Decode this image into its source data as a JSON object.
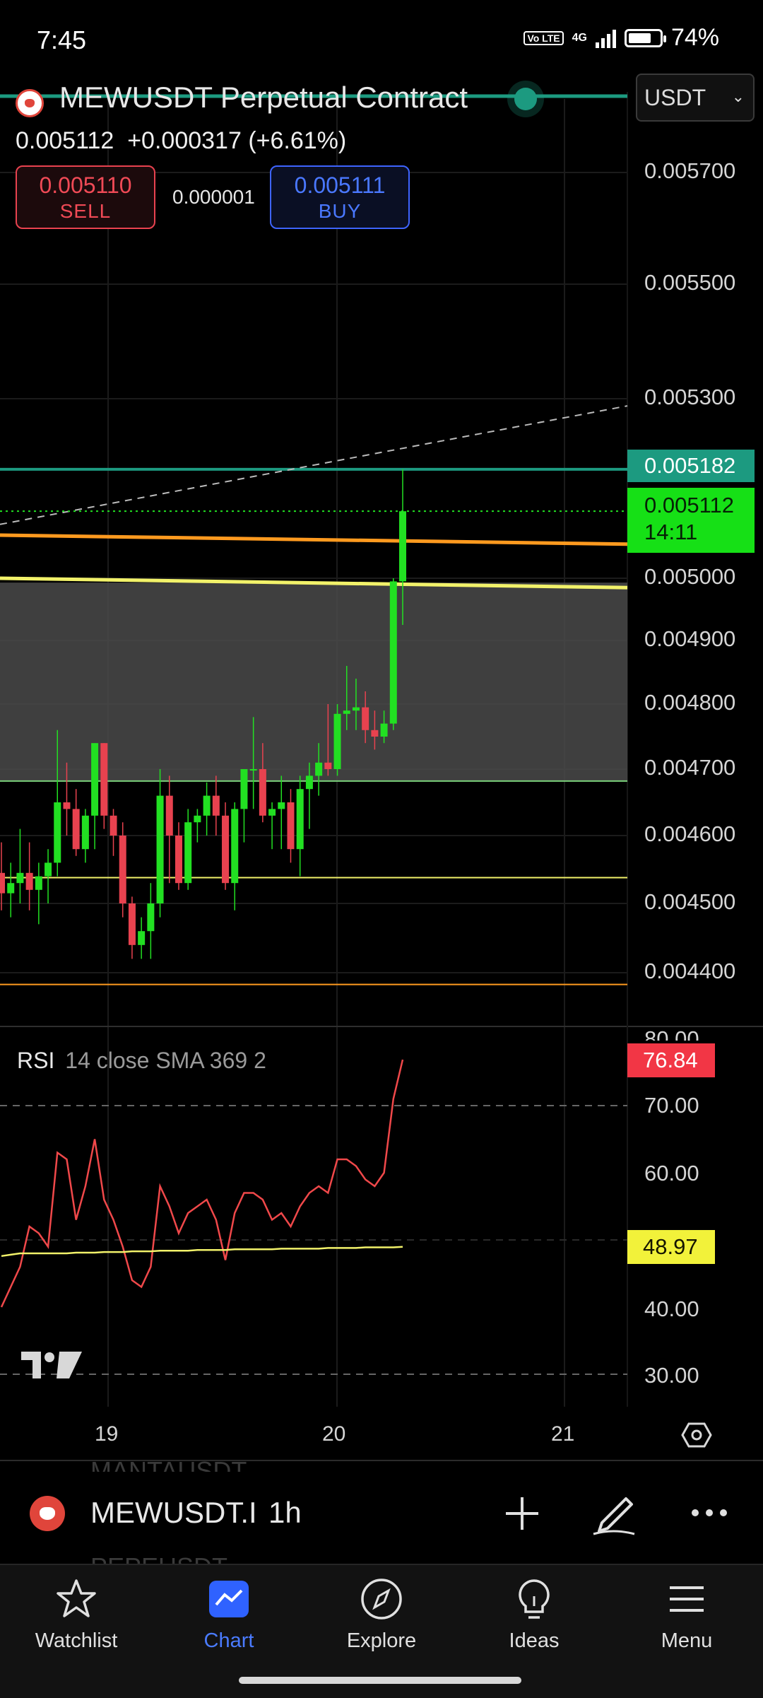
{
  "status": {
    "time": "7:45",
    "network": "4G",
    "volte": "Vo LTE",
    "battery": "74%",
    "battery_level": 0.74
  },
  "header": {
    "title": "MEWUSDT Perpetual Contract",
    "currency": "USDT",
    "last_price": "0.005112",
    "change": "+0.000317 (+6.61%)",
    "sell": {
      "price": "0.005110",
      "label": "SELL"
    },
    "buy": {
      "price": "0.005111",
      "label": "BUY"
    },
    "spread": "0.000001"
  },
  "price_axis": {
    "labels": [
      "0.005700",
      "0.005500",
      "0.005300",
      "0.005000",
      "0.004900",
      "0.004800",
      "0.004700",
      "0.004600",
      "0.004500",
      "0.004400"
    ],
    "tag_high": "0.005182",
    "tag_last": "0.005112",
    "tag_countdown": "14:11"
  },
  "rsi": {
    "title": "RSI",
    "params": "14 close SMA 369 2",
    "value": "76.84",
    "sma_value": "48.97",
    "axis_labels": [
      "80.00",
      "70.00",
      "60.00",
      "40.00",
      "30.00"
    ]
  },
  "time_axis": {
    "labels": [
      "19",
      "20",
      "21"
    ]
  },
  "symbol_bar": {
    "symbol": "MEWUSDT.I",
    "interval": "1h",
    "ghost_above": "MANTAUSDT",
    "ghost_below": "PEPEUSDT"
  },
  "nav": {
    "items": [
      {
        "label": "Watchlist",
        "icon": "star-icon"
      },
      {
        "label": "Chart",
        "icon": "chart-icon"
      },
      {
        "label": "Explore",
        "icon": "compass-icon"
      },
      {
        "label": "Ideas",
        "icon": "lightbulb-icon"
      },
      {
        "label": "Menu",
        "icon": "hamburger-icon"
      }
    ],
    "active": "Chart"
  },
  "colors": {
    "up": "#22e022",
    "down": "#e8424f",
    "teal": "#1c9a80",
    "orange": "#ff9a1f",
    "yellow": "#f2f26a",
    "zone": "#4a4a4a",
    "rsi_line": "#f0484a",
    "accent": "#3e64ff"
  },
  "chart_data": {
    "type": "candlestick",
    "symbol": "MEWUSDT",
    "interval": "1h",
    "y_range": [
      0.0043,
      0.0058
    ],
    "candles": [
      {
        "o": 0.004545,
        "h": 0.00459,
        "l": 0.00449,
        "c": 0.004515
      },
      {
        "o": 0.004515,
        "h": 0.00456,
        "l": 0.00448,
        "c": 0.00453
      },
      {
        "o": 0.00453,
        "h": 0.00461,
        "l": 0.0045,
        "c": 0.004545
      },
      {
        "o": 0.004545,
        "h": 0.00459,
        "l": 0.00449,
        "c": 0.00452
      },
      {
        "o": 0.00452,
        "h": 0.00456,
        "l": 0.00447,
        "c": 0.00454
      },
      {
        "o": 0.00454,
        "h": 0.00458,
        "l": 0.0045,
        "c": 0.00456
      },
      {
        "o": 0.00456,
        "h": 0.00476,
        "l": 0.00454,
        "c": 0.00465
      },
      {
        "o": 0.00465,
        "h": 0.00471,
        "l": 0.0046,
        "c": 0.00464
      },
      {
        "o": 0.00464,
        "h": 0.00467,
        "l": 0.00457,
        "c": 0.00458
      },
      {
        "o": 0.00458,
        "h": 0.00464,
        "l": 0.00456,
        "c": 0.00463
      },
      {
        "o": 0.00463,
        "h": 0.00474,
        "l": 0.00458,
        "c": 0.00474
      },
      {
        "o": 0.00474,
        "h": 0.00474,
        "l": 0.00461,
        "c": 0.00463
      },
      {
        "o": 0.00463,
        "h": 0.00464,
        "l": 0.00457,
        "c": 0.0046
      },
      {
        "o": 0.0046,
        "h": 0.00462,
        "l": 0.00448,
        "c": 0.0045
      },
      {
        "o": 0.0045,
        "h": 0.00451,
        "l": 0.00442,
        "c": 0.00444
      },
      {
        "o": 0.00444,
        "h": 0.00448,
        "l": 0.00442,
        "c": 0.00446
      },
      {
        "o": 0.00446,
        "h": 0.00453,
        "l": 0.00442,
        "c": 0.0045
      },
      {
        "o": 0.0045,
        "h": 0.0047,
        "l": 0.00448,
        "c": 0.00466
      },
      {
        "o": 0.00466,
        "h": 0.00469,
        "l": 0.00453,
        "c": 0.0046
      },
      {
        "o": 0.0046,
        "h": 0.00462,
        "l": 0.00452,
        "c": 0.00453
      },
      {
        "o": 0.00453,
        "h": 0.00464,
        "l": 0.00452,
        "c": 0.00462
      },
      {
        "o": 0.00462,
        "h": 0.00464,
        "l": 0.00459,
        "c": 0.00463
      },
      {
        "o": 0.00463,
        "h": 0.00468,
        "l": 0.0046,
        "c": 0.00466
      },
      {
        "o": 0.00466,
        "h": 0.00469,
        "l": 0.0046,
        "c": 0.00463
      },
      {
        "o": 0.00463,
        "h": 0.00465,
        "l": 0.00452,
        "c": 0.00453
      },
      {
        "o": 0.00453,
        "h": 0.00465,
        "l": 0.00449,
        "c": 0.00464
      },
      {
        "o": 0.00464,
        "h": 0.0047,
        "l": 0.00459,
        "c": 0.0047
      },
      {
        "o": 0.0047,
        "h": 0.00478,
        "l": 0.00464,
        "c": 0.0047
      },
      {
        "o": 0.0047,
        "h": 0.00474,
        "l": 0.00462,
        "c": 0.00463
      },
      {
        "o": 0.00463,
        "h": 0.00465,
        "l": 0.00458,
        "c": 0.00464
      },
      {
        "o": 0.00464,
        "h": 0.00469,
        "l": 0.00458,
        "c": 0.00465
      },
      {
        "o": 0.00465,
        "h": 0.00467,
        "l": 0.00456,
        "c": 0.00458
      },
      {
        "o": 0.00458,
        "h": 0.00469,
        "l": 0.00454,
        "c": 0.00467
      },
      {
        "o": 0.00467,
        "h": 0.00471,
        "l": 0.00461,
        "c": 0.00469
      },
      {
        "o": 0.00469,
        "h": 0.00474,
        "l": 0.00466,
        "c": 0.00471
      },
      {
        "o": 0.00471,
        "h": 0.0048,
        "l": 0.00469,
        "c": 0.0047
      },
      {
        "o": 0.0047,
        "h": 0.0048,
        "l": 0.00469,
        "c": 0.004785
      },
      {
        "o": 0.004785,
        "h": 0.00486,
        "l": 0.00476,
        "c": 0.00479
      },
      {
        "o": 0.00479,
        "h": 0.00484,
        "l": 0.00476,
        "c": 0.004795
      },
      {
        "o": 0.004795,
        "h": 0.00482,
        "l": 0.00474,
        "c": 0.00476
      },
      {
        "o": 0.00476,
        "h": 0.00479,
        "l": 0.00473,
        "c": 0.00475
      },
      {
        "o": 0.00475,
        "h": 0.00479,
        "l": 0.00474,
        "c": 0.00477
      },
      {
        "o": 0.00477,
        "h": 0.005,
        "l": 0.00476,
        "c": 0.004995
      },
      {
        "o": 0.004995,
        "h": 0.005182,
        "l": 0.004925,
        "c": 0.005112
      }
    ],
    "rsi": [
      40,
      43,
      46,
      52,
      51,
      49,
      63,
      62,
      53,
      58,
      65,
      56,
      53,
      49,
      44,
      43,
      46,
      58,
      55,
      51,
      54,
      55,
      56,
      53,
      47,
      54,
      57,
      57,
      56,
      53,
      54,
      52,
      55,
      57,
      58,
      57,
      62,
      62,
      61,
      59,
      58,
      60,
      71,
      76.84
    ],
    "rsi_sma": [
      47.6,
      47.8,
      48.0,
      48.0,
      48.0,
      48.0,
      48.0,
      48.0,
      48.1,
      48.1,
      48.1,
      48.2,
      48.2,
      48.2,
      48.3,
      48.3,
      48.3,
      48.4,
      48.4,
      48.4,
      48.4,
      48.5,
      48.5,
      48.5,
      48.5,
      48.6,
      48.6,
      48.6,
      48.6,
      48.6,
      48.7,
      48.7,
      48.7,
      48.7,
      48.7,
      48.8,
      48.8,
      48.8,
      48.8,
      48.9,
      48.9,
      48.9,
      48.9,
      48.97
    ],
    "levels": {
      "teal_resistance": 0.005182,
      "last_price": 0.005112,
      "orange_upper_start": 0.005072,
      "orange_upper_end": 0.005057,
      "yellow_upper_start": 0.005,
      "yellow_upper_end": 0.004985,
      "zone_top": 0.004993,
      "zone_bottom": 0.004682,
      "yellow_lower": 0.004538,
      "orange_lower": 0.004383,
      "dashed_trend_start": 0.00509,
      "dashed_trend_end": 0.005288
    },
    "rsi_range": [
      25,
      82
    ],
    "rsi_bands": [
      70,
      50,
      30
    ],
    "x_ticks": [
      "19",
      "20",
      "21"
    ]
  }
}
